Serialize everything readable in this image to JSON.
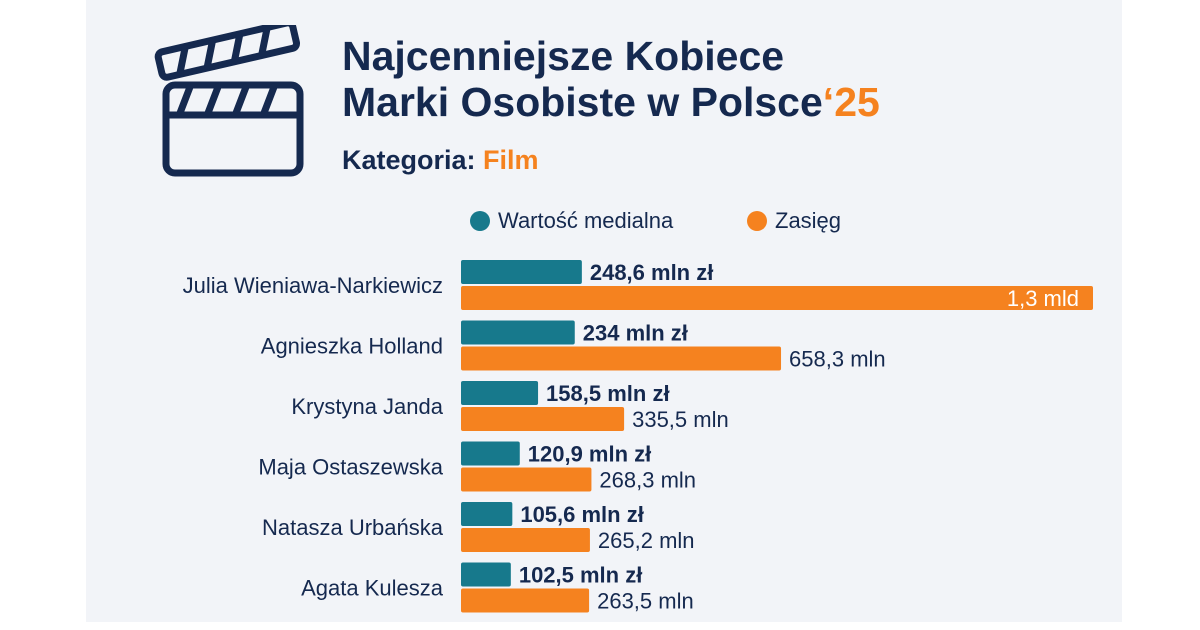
{
  "header": {
    "title_line1": "Najcenniejsze Kobiece",
    "title_line2": "Marki Osobiste w Polsce",
    "title_year": "‘25",
    "category_label": "Kategoria:",
    "category_value": "Film"
  },
  "legend": {
    "items": [
      {
        "label": "Wartość medialna",
        "color": "#17798c"
      },
      {
        "label": "Zasięg",
        "color": "#f5821f"
      }
    ]
  },
  "icon": "clapperboard-icon",
  "colors": {
    "navy": "#15294f",
    "teal": "#17798c",
    "orange": "#f5821f"
  },
  "chart_data": {
    "type": "bar",
    "orientation": "horizontal",
    "categories": [
      "Julia Wieniawa-Narkiewicz",
      "Agnieszka Holland",
      "Krystyna Janda",
      "Maja Ostaszewska",
      "Natasza Urbańska",
      "Agata Kulesza"
    ],
    "series": [
      {
        "name": "Wartość medialna",
        "unit": "mln zł",
        "values": [
          248.6,
          234,
          158.5,
          120.9,
          105.6,
          102.5
        ],
        "labels": [
          "248,6 mln zł",
          "234 mln zł",
          "158,5 mln zł",
          "120,9 mln zł",
          "105,6 mln zł",
          "102,5 mln zł"
        ]
      },
      {
        "name": "Zasięg",
        "unit": "mln",
        "values": [
          1300,
          658.3,
          335.5,
          268.3,
          265.2,
          263.5
        ],
        "labels": [
          "1,3 mld",
          "658,3 mln",
          "335,5 mln",
          "268,3 mln",
          "265,2 mln",
          "263,5 mln"
        ]
      }
    ],
    "legend": "top",
    "grid": false
  }
}
